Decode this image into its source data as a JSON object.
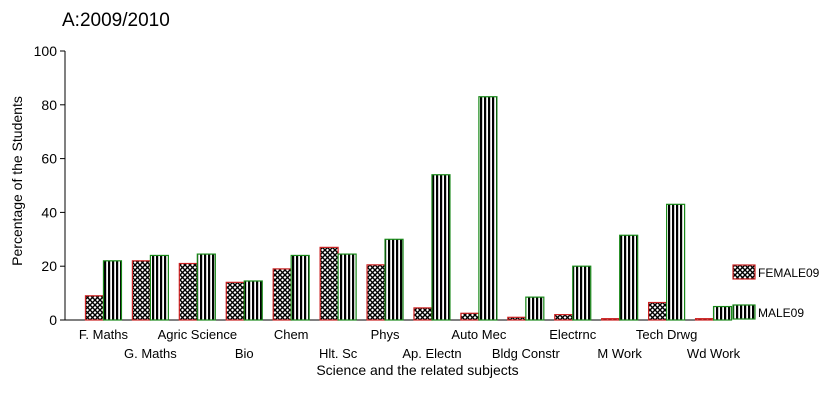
{
  "chart_data": {
    "type": "bar",
    "title": "A:2009/2010",
    "xlabel": "Science and the related subjects",
    "ylabel": "Percentage of the Students",
    "ylim": [
      0,
      100
    ],
    "yticks": [
      0,
      20,
      40,
      60,
      80,
      100
    ],
    "grid": false,
    "legend_position": "right",
    "categories": [
      "F. Maths",
      "G. Maths",
      "Agric Science",
      "Bio",
      "Chem",
      "Hlt. Sc",
      "Phys",
      "Ap. Electn",
      "Auto Mec",
      "Bldg Constr",
      "Electrnc",
      "M Work",
      "Tech Drwg",
      "Wd Work"
    ],
    "series": [
      {
        "name": "FEMALE09",
        "color": "#cc2222",
        "pattern": "crosshatch",
        "values": [
          9,
          22,
          21,
          14,
          19,
          27,
          20.5,
          4.5,
          2.5,
          1,
          2,
          0.5,
          6.5,
          0.5
        ]
      },
      {
        "name": "MALE09",
        "color": "#1a8a1a",
        "pattern": "vertical-stripes",
        "values": [
          22,
          24,
          24.5,
          14.5,
          24,
          24.5,
          30,
          54,
          83,
          8.5,
          20,
          31.5,
          43,
          5
        ]
      }
    ]
  }
}
